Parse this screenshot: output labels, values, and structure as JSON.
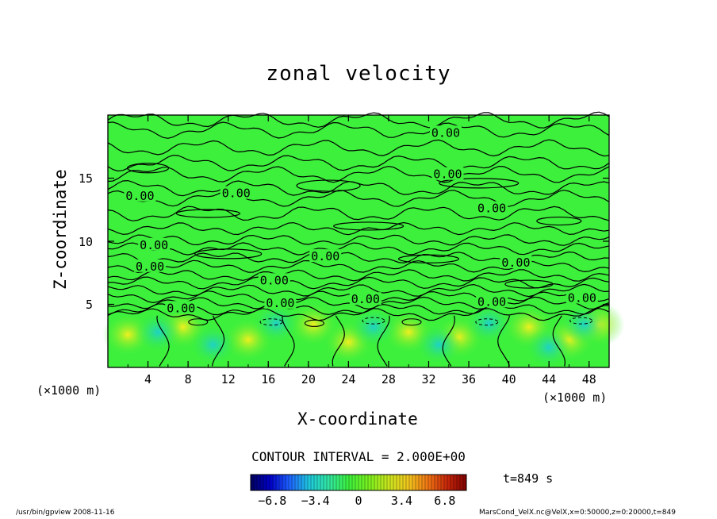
{
  "chart_data": {
    "type": "heatmap",
    "title": "zonal velocity",
    "xlabel": "X-coordinate",
    "ylabel": "Z-coordinate",
    "x_unit": "(×1000 m)",
    "y_unit": "(×1000 m)",
    "xlim": [
      0,
      50
    ],
    "ylim": [
      0,
      20
    ],
    "x_ticks": [
      "4",
      "8",
      "12",
      "16",
      "20",
      "24",
      "28",
      "32",
      "36",
      "40",
      "44",
      "48"
    ],
    "y_ticks": [
      "5",
      "10",
      "15"
    ],
    "contour_interval_text": "CONTOUR INTERVAL = 2.000E+00",
    "contour_labels": [
      {
        "text": "0.00",
        "x": 33.7,
        "z": 18.6
      },
      {
        "text": "0.00",
        "x": 33.9,
        "z": 15.3
      },
      {
        "text": "0.00",
        "x": 3.2,
        "z": 13.6
      },
      {
        "text": "0.00",
        "x": 12.8,
        "z": 13.8
      },
      {
        "text": "0.00",
        "x": 38.3,
        "z": 12.6
      },
      {
        "text": "0.00",
        "x": 4.6,
        "z": 9.7
      },
      {
        "text": "0.00",
        "x": 4.2,
        "z": 8.0
      },
      {
        "text": "0.00",
        "x": 21.7,
        "z": 8.8
      },
      {
        "text": "0.00",
        "x": 40.7,
        "z": 8.3
      },
      {
        "text": "0.00",
        "x": 16.6,
        "z": 6.9
      },
      {
        "text": "0.00",
        "x": 17.2,
        "z": 5.1
      },
      {
        "text": "0.00",
        "x": 7.3,
        "z": 4.7
      },
      {
        "text": "0.00",
        "x": 25.7,
        "z": 5.4
      },
      {
        "text": "0.00",
        "x": 38.3,
        "z": 5.2
      },
      {
        "text": "0.00",
        "x": 47.3,
        "z": 5.5
      }
    ],
    "colorbar": {
      "min": -8.5,
      "max": 8.5,
      "ticks": [
        "−6.8",
        "−3.4",
        "0",
        "3.4",
        "6.8"
      ],
      "tick_values": [
        -6.8,
        -3.4,
        0,
        3.4,
        6.8
      ],
      "colors": [
        "#000060",
        "#0000c8",
        "#1e64ff",
        "#1ec8dc",
        "#32e6a0",
        "#3cf03c",
        "#78f01e",
        "#c8e61e",
        "#f0c81e",
        "#f07814",
        "#c8280a",
        "#800000"
      ]
    },
    "background_color": "#3cf03c",
    "field_colors": {
      "positive": "#e6f01e",
      "negative": "#28e6a0"
    }
  },
  "timestamp": "t=849 s",
  "footer": {
    "left": "/usr/bin/gpview   2008-11-16",
    "right": "MarsCond_VelX.nc@VelX,x=0:50000,z=0:20000,t=849"
  }
}
